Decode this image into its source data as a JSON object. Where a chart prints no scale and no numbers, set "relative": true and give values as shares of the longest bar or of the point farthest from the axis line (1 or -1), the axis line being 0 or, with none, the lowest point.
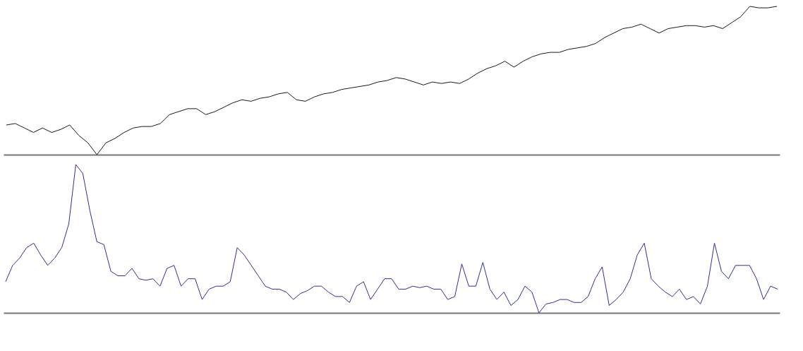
{
  "chart_data": [
    {
      "type": "line",
      "relative": true,
      "tick_labels": false,
      "categories": [
        null,
        null,
        null,
        null,
        null,
        null,
        null,
        null,
        null,
        null,
        null,
        null,
        null,
        null,
        null,
        null,
        null,
        null,
        null,
        null,
        null,
        null,
        null,
        null,
        null,
        null,
        null,
        null,
        null,
        null,
        null,
        null,
        null,
        null,
        null,
        null,
        null,
        null,
        null,
        null,
        null,
        null,
        null,
        null,
        null,
        null,
        null,
        null,
        null,
        null,
        null,
        null,
        null,
        null,
        null,
        null,
        null,
        null,
        null,
        null,
        null,
        null,
        null,
        null,
        null,
        null,
        null,
        null,
        null,
        null,
        null,
        null,
        null,
        null,
        null,
        null,
        null,
        null,
        null,
        null,
        null,
        null,
        null,
        null,
        null,
        null
      ],
      "series": [
        {
          "color": "#1a1a1a",
          "values": [
            0.2,
            0.21,
            0.18,
            0.15,
            0.18,
            0.15,
            0.17,
            0.2,
            0.13,
            0.08,
            0,
            0.08,
            0.11,
            0.15,
            0.18,
            0.19,
            0.19,
            0.21,
            0.27,
            0.29,
            0.31,
            0.31,
            0.27,
            0.29,
            0.32,
            0.35,
            0.37,
            0.36,
            0.38,
            0.39,
            0.41,
            0.42,
            0.37,
            0.36,
            0.39,
            0.41,
            0.42,
            0.44,
            0.45,
            0.46,
            0.47,
            0.49,
            0.5,
            0.52,
            0.51,
            0.49,
            0.47,
            0.49,
            0.48,
            0.49,
            0.48,
            0.51,
            0.55,
            0.58,
            0.6,
            0.63,
            0.59,
            0.63,
            0.66,
            0.68,
            0.69,
            0.69,
            0.71,
            0.72,
            0.73,
            0.75,
            0.79,
            0.82,
            0.85,
            0.86,
            0.88,
            0.85,
            0.82,
            0.85,
            0.86,
            0.87,
            0.87,
            0.86,
            0.87,
            0.85,
            0.89,
            0.93,
            1,
            0.99,
            0.99,
            1
          ]
        }
      ]
    },
    {
      "type": "line",
      "relative": true,
      "tick_labels": false,
      "categories": [
        null,
        null,
        null,
        null,
        null,
        null,
        null,
        null,
        null,
        null,
        null,
        null,
        null,
        null,
        null,
        null,
        null,
        null,
        null,
        null,
        null,
        null,
        null,
        null,
        null,
        null,
        null,
        null,
        null,
        null,
        null,
        null,
        null,
        null,
        null,
        null,
        null,
        null,
        null,
        null,
        null,
        null,
        null,
        null,
        null,
        null,
        null,
        null,
        null,
        null,
        null,
        null,
        null,
        null,
        null,
        null,
        null,
        null,
        null,
        null,
        null,
        null,
        null,
        null,
        null,
        null,
        null,
        null,
        null,
        null,
        null,
        null,
        null,
        null,
        null,
        null,
        null,
        null,
        null,
        null,
        null,
        null,
        null,
        null,
        null,
        null,
        null,
        null,
        null,
        null,
        null,
        null,
        null,
        null,
        null,
        null,
        null,
        null,
        null,
        null,
        null,
        null,
        null,
        null,
        null,
        null,
        null,
        null,
        null,
        null,
        null
      ],
      "series": [
        {
          "color": "#2e3192",
          "values": [
            0.21,
            0.32,
            0.37,
            0.44,
            0.47,
            0.39,
            0.32,
            0.37,
            0.44,
            0.6,
            1,
            0.94,
            0.69,
            0.48,
            0.46,
            0.28,
            0.25,
            0.25,
            0.3,
            0.23,
            0.22,
            0.23,
            0.18,
            0.3,
            0.32,
            0.18,
            0.23,
            0.23,
            0.09,
            0.16,
            0.18,
            0.18,
            0.21,
            0.44,
            0.39,
            0.32,
            0.25,
            0.18,
            0.16,
            0.16,
            0.14,
            0.09,
            0.13,
            0.15,
            0.18,
            0.18,
            0.14,
            0.11,
            0.11,
            0.07,
            0.18,
            0.21,
            0.09,
            0.16,
            0.23,
            0.23,
            0.16,
            0.16,
            0.18,
            0.17,
            0.18,
            0.16,
            0.16,
            0.09,
            0.11,
            0.33,
            0.18,
            0.18,
            0.34,
            0.16,
            0.09,
            0.14,
            0.05,
            0.09,
            0.18,
            0.14,
            0,
            0.06,
            0.07,
            0.09,
            0.09,
            0.07,
            0.07,
            0.11,
            0.23,
            0.31,
            0.05,
            0.09,
            0.14,
            0.23,
            0.39,
            0.47,
            0.23,
            0.18,
            0.14,
            0.11,
            0.16,
            0.09,
            0.11,
            0.06,
            0.18,
            0.47,
            0.28,
            0.23,
            0.32,
            0.32,
            0.32,
            0.23,
            0.09,
            0.18,
            0.16
          ]
        }
      ]
    }
  ]
}
